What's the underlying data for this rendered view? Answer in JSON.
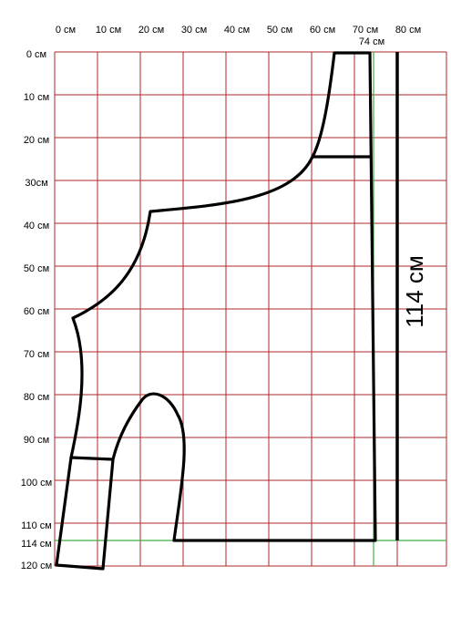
{
  "x_labels": [
    "0 см",
    "10 см",
    "20 см",
    "30 см",
    "40 см",
    "50 см",
    "60 см",
    "70 см",
    "80 см"
  ],
  "y_labels": [
    "0 см",
    "10 см",
    "20 см",
    "30см",
    "40 см",
    "50 см",
    "60 см",
    "70 см",
    "80 см",
    "90 см",
    "100 см",
    "110 см"
  ],
  "extra_x_label": "74 см",
  "extra_y_labels": [
    "114 см",
    "120 см"
  ],
  "height_label": "114 см"
}
